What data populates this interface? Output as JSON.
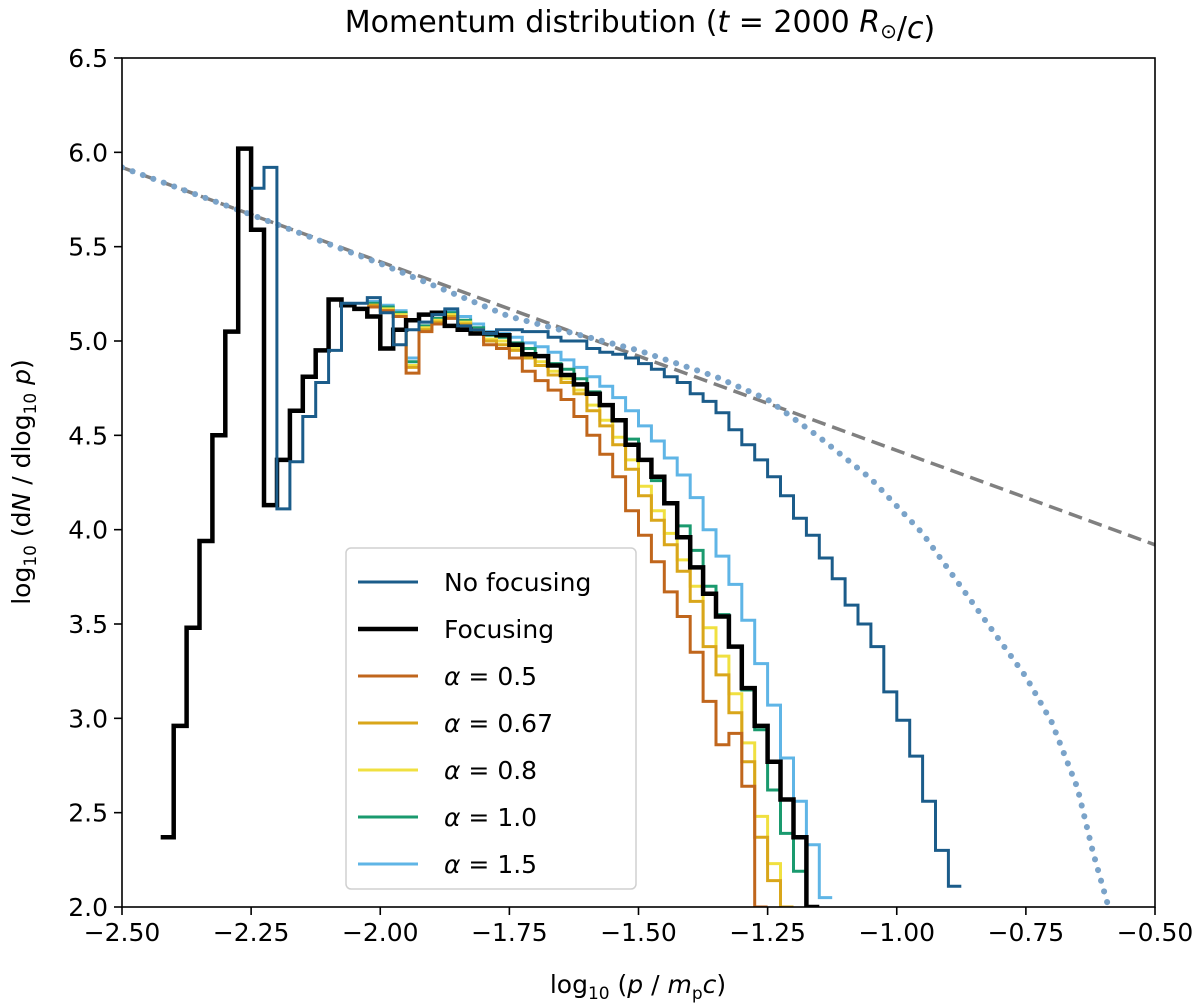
{
  "chart_data": {
    "type": "line",
    "title": "Momentum distribution (t = 2000 R⊙/c)",
    "xlabel": "log10 (p / mpc)",
    "ylabel": "log10 (dN / dlog10 p)",
    "xlim": [
      -2.5,
      -0.5
    ],
    "ylim": [
      2.0,
      6.5
    ],
    "xticks": [
      "−2.50",
      "−2.25",
      "−2.00",
      "−1.75",
      "−1.50",
      "−1.25",
      "−1.00",
      "−0.75",
      "−0.50"
    ],
    "yticks": [
      "2.0",
      "2.5",
      "3.0",
      "3.5",
      "4.0",
      "4.5",
      "5.0",
      "5.5",
      "6.0",
      "6.5"
    ],
    "grid": false,
    "legend_position": "lower-left",
    "bin_width": 0.025,
    "series": [
      {
        "name": "No focusing",
        "color": "#1b5c8a",
        "style": "step",
        "x_start": -2.25,
        "values": [
          5.81,
          5.92,
          4.11,
          4.36,
          4.6,
          4.78,
          4.95,
          5.2,
          5.2,
          5.23,
          5.15,
          4.98,
          5.06,
          5.1,
          5.14,
          5.17,
          5.08,
          5.06,
          5.04,
          5.06,
          5.06,
          5.05,
          5.05,
          5.02,
          5.0,
          5.0,
          4.96,
          4.94,
          4.93,
          4.91,
          4.88,
          4.85,
          4.81,
          4.78,
          4.72,
          4.68,
          4.62,
          4.53,
          4.45,
          4.37,
          4.28,
          4.18,
          4.06,
          3.97,
          3.85,
          3.74,
          3.6,
          3.5,
          3.38,
          3.14,
          2.99,
          2.8,
          2.56,
          2.3,
          2.11
        ]
      },
      {
        "name": "Focusing",
        "color": "#000000",
        "style": "step",
        "x_start": -2.425,
        "values": [
          2.37,
          2.96,
          3.48,
          3.94,
          4.5,
          5.05,
          6.02,
          5.59,
          4.13,
          4.37,
          4.63,
          4.81,
          4.95,
          5.22,
          5.19,
          5.17,
          5.13,
          4.96,
          5.06,
          5.11,
          5.14,
          5.15,
          5.08,
          5.06,
          5.04,
          5.04,
          5.03,
          4.98,
          4.93,
          4.92,
          4.87,
          4.82,
          4.77,
          4.72,
          4.66,
          4.58,
          4.45,
          4.37,
          4.28,
          4.14,
          3.96,
          3.8,
          3.66,
          3.54,
          3.38,
          3.16,
          2.96,
          2.77,
          2.57,
          2.37,
          2.0
        ]
      },
      {
        "name": "α = 0.5",
        "color": "#c0661c",
        "style": "step",
        "x_start": -2.025,
        "values": [
          5.18,
          5.16,
          5.13,
          4.83,
          5.05,
          5.09,
          5.12,
          5.08,
          5.04,
          4.98,
          4.96,
          4.91,
          4.84,
          4.79,
          4.74,
          4.69,
          4.6,
          4.5,
          4.4,
          4.28,
          4.1,
          3.97,
          3.83,
          3.67,
          3.54,
          3.35,
          3.09,
          2.86,
          2.92,
          2.64,
          2.0
        ]
      },
      {
        "name": "α = 0.67",
        "color": "#d9a61a",
        "style": "step",
        "x_start": -2.025,
        "values": [
          5.19,
          5.16,
          5.13,
          4.86,
          5.06,
          5.1,
          5.13,
          5.09,
          5.05,
          5.0,
          4.98,
          4.95,
          4.91,
          4.87,
          4.82,
          4.78,
          4.72,
          4.63,
          4.55,
          4.45,
          4.32,
          4.18,
          4.05,
          3.92,
          3.78,
          3.62,
          3.38,
          3.23,
          3.03,
          2.77,
          2.37,
          2.14,
          2.0
        ]
      },
      {
        "name": "α = 0.8",
        "color": "#f0e040",
        "style": "step",
        "x_start": -2.025,
        "values": [
          5.19,
          5.17,
          5.14,
          4.87,
          5.07,
          5.11,
          5.14,
          5.1,
          5.06,
          5.01,
          5.0,
          4.96,
          4.93,
          4.89,
          4.84,
          4.8,
          4.74,
          4.66,
          4.58,
          4.49,
          4.37,
          4.23,
          4.1,
          3.98,
          3.84,
          3.7,
          3.48,
          3.33,
          3.13,
          2.87,
          2.48,
          2.23,
          2.0
        ]
      },
      {
        "name": "α = 1.0",
        "color": "#1a9a6e",
        "style": "step",
        "x_start": -2.025,
        "values": [
          5.2,
          5.18,
          5.15,
          4.89,
          5.08,
          5.12,
          5.15,
          5.11,
          5.07,
          5.03,
          5.02,
          4.99,
          4.96,
          4.92,
          4.88,
          4.85,
          4.8,
          4.73,
          4.66,
          4.58,
          4.48,
          4.37,
          4.26,
          4.14,
          4.02,
          3.89,
          3.7,
          3.55,
          3.38,
          3.15,
          2.94,
          2.62,
          2.39,
          2.19
        ]
      },
      {
        "name": "α = 1.5",
        "color": "#5fb5e6",
        "style": "step",
        "x_start": -2.025,
        "values": [
          5.21,
          5.19,
          5.16,
          4.91,
          5.1,
          5.14,
          5.16,
          5.13,
          5.09,
          5.05,
          5.04,
          5.02,
          4.99,
          4.97,
          4.94,
          4.9,
          4.86,
          4.81,
          4.76,
          4.7,
          4.63,
          4.55,
          4.47,
          4.38,
          4.29,
          4.17,
          4.0,
          3.86,
          3.71,
          3.52,
          3.29,
          3.07,
          2.79,
          2.56,
          2.33,
          2.05
        ]
      },
      {
        "name": "",
        "color": "#808080",
        "style": "dashed",
        "points": [
          [
            -2.5,
            5.92
          ],
          [
            -0.5,
            3.92
          ]
        ]
      },
      {
        "name": "",
        "color": "#7aa3c9",
        "style": "dotted",
        "points": [
          [
            -2.5,
            5.92
          ],
          [
            -2.25,
            5.67
          ],
          [
            -2.0,
            5.41
          ],
          [
            -1.75,
            5.13
          ],
          [
            -1.5,
            4.95
          ],
          [
            -1.35,
            4.81
          ],
          [
            -1.25,
            4.69
          ],
          [
            -1.15,
            4.49
          ],
          [
            -1.05,
            4.27
          ],
          [
            -0.95,
            3.98
          ],
          [
            -0.85,
            3.6
          ],
          [
            -0.75,
            3.22
          ],
          [
            -0.7,
            2.98
          ],
          [
            -0.65,
            2.63
          ],
          [
            -0.62,
            2.29
          ],
          [
            -0.59,
            2.0
          ]
        ]
      }
    ]
  }
}
